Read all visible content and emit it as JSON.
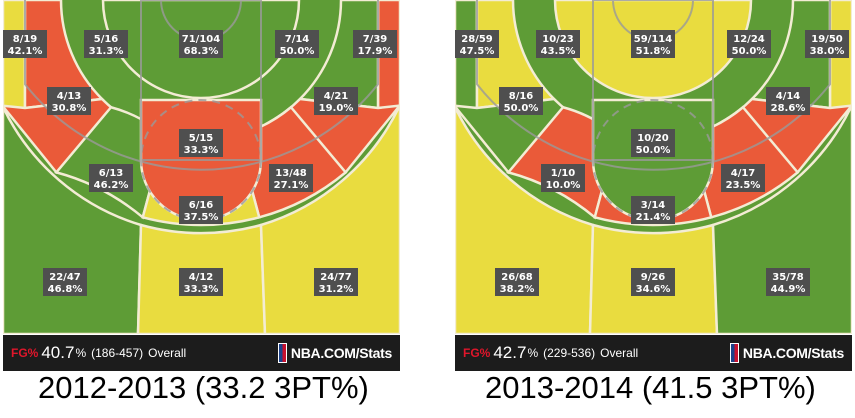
{
  "colors": {
    "green": "#5e9c36",
    "yellow": "#e9dc3f",
    "red": "#ea5a39",
    "lineColor": "#f3ecd4",
    "boundaryColor": "#9a9a9a"
  },
  "brand": "NBA.COM/Stats",
  "chart_data": [
    {
      "type": "heatmap",
      "caption": "2012-2013 (33.2 3PT%)",
      "overall": {
        "label": "FG%",
        "value": "40.7",
        "unit": "%",
        "counts": "(186-457)",
        "text": "Overall"
      },
      "zones": [
        {
          "id": "left-corner-3",
          "made_att": "8/19",
          "pct": "42.1%",
          "color": "yellow"
        },
        {
          "id": "left-baseline-mid",
          "made_att": "5/16",
          "pct": "31.3%",
          "color": "red"
        },
        {
          "id": "restricted-area",
          "made_att": "71/104",
          "pct": "68.3%",
          "color": "green"
        },
        {
          "id": "right-baseline-mid",
          "made_att": "7/14",
          "pct": "50.0%",
          "color": "green"
        },
        {
          "id": "right-corner-3",
          "made_att": "7/39",
          "pct": "17.9%",
          "color": "red"
        },
        {
          "id": "left-wing-mid",
          "made_att": "4/13",
          "pct": "30.8%",
          "color": "red"
        },
        {
          "id": "right-wing-mid",
          "made_att": "4/21",
          "pct": "19.0%",
          "color": "red"
        },
        {
          "id": "paint-non-ra",
          "made_att": "5/15",
          "pct": "33.3%",
          "color": "red"
        },
        {
          "id": "left-elbow-mid",
          "made_att": "6/13",
          "pct": "46.2%",
          "color": "green"
        },
        {
          "id": "right-elbow-mid",
          "made_att": "13/48",
          "pct": "27.1%",
          "color": "red"
        },
        {
          "id": "top-key-mid",
          "made_att": "6/16",
          "pct": "37.5%",
          "color": "yellow"
        },
        {
          "id": "left-wing-3",
          "made_att": "22/47",
          "pct": "46.8%",
          "color": "green"
        },
        {
          "id": "top-3",
          "made_att": "4/12",
          "pct": "33.3%",
          "color": "yellow"
        },
        {
          "id": "right-wing-3",
          "made_att": "24/77",
          "pct": "31.2%",
          "color": "yellow"
        }
      ]
    },
    {
      "type": "heatmap",
      "caption": "2013-2014 (41.5 3PT%)",
      "overall": {
        "label": "FG%",
        "value": "42.7",
        "unit": "%",
        "counts": "(229-536)",
        "text": "Overall"
      },
      "zones": [
        {
          "id": "left-corner-3",
          "made_att": "28/59",
          "pct": "47.5%",
          "color": "green"
        },
        {
          "id": "left-baseline-mid",
          "made_att": "10/23",
          "pct": "43.5%",
          "color": "yellow"
        },
        {
          "id": "restricted-area",
          "made_att": "59/114",
          "pct": "51.8%",
          "color": "yellow"
        },
        {
          "id": "right-baseline-mid",
          "made_att": "12/24",
          "pct": "50.0%",
          "color": "green"
        },
        {
          "id": "right-corner-3",
          "made_att": "19/50",
          "pct": "38.0%",
          "color": "yellow"
        },
        {
          "id": "left-wing-mid",
          "made_att": "8/16",
          "pct": "50.0%",
          "color": "green"
        },
        {
          "id": "right-wing-mid",
          "made_att": "4/14",
          "pct": "28.6%",
          "color": "red"
        },
        {
          "id": "paint-non-ra",
          "made_att": "10/20",
          "pct": "50.0%",
          "color": "green"
        },
        {
          "id": "left-elbow-mid",
          "made_att": "1/10",
          "pct": "10.0%",
          "color": "red"
        },
        {
          "id": "right-elbow-mid",
          "made_att": "4/17",
          "pct": "23.5%",
          "color": "red"
        },
        {
          "id": "top-key-mid",
          "made_att": "3/14",
          "pct": "21.4%",
          "color": "red"
        },
        {
          "id": "left-wing-3",
          "made_att": "26/68",
          "pct": "38.2%",
          "color": "yellow"
        },
        {
          "id": "top-3",
          "made_att": "9/26",
          "pct": "34.6%",
          "color": "yellow"
        },
        {
          "id": "right-wing-3",
          "made_att": "35/78",
          "pct": "44.9%",
          "color": "green"
        }
      ]
    }
  ]
}
